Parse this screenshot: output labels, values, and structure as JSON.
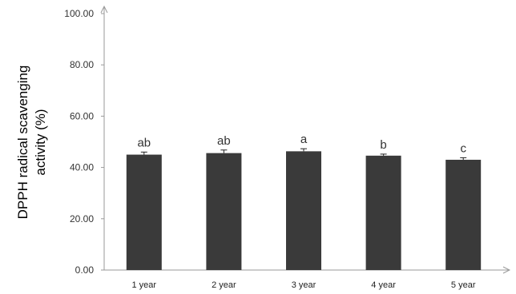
{
  "chart_data": {
    "type": "bar",
    "title": "",
    "xlabel": "",
    "ylabel_lines": [
      "DPPH radical scavenging",
      "activity (%)"
    ],
    "ylim": [
      0,
      100
    ],
    "yticks": [
      "0.00",
      "20.00",
      "40.00",
      "60.00",
      "80.00",
      "100.00"
    ],
    "ytick_values": [
      0,
      20,
      40,
      60,
      80,
      100
    ],
    "categories": [
      "1 year",
      "2 year",
      "3 year",
      "4 year",
      "5 year"
    ],
    "values": [
      45.0,
      45.6,
      46.3,
      44.6,
      43.0
    ],
    "errors": [
      1.0,
      1.2,
      1.0,
      0.6,
      0.8
    ],
    "significance_letters": [
      "ab",
      "ab",
      "a",
      "b",
      "c"
    ],
    "bar_color": "#3a3a3a",
    "axis_color": "#999999",
    "grid": false,
    "legend": "none"
  }
}
